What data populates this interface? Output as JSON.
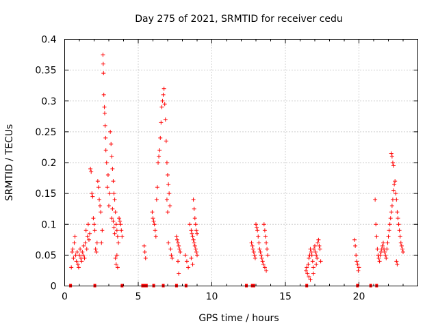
{
  "chart_data": {
    "type": "scatter",
    "title": "Day 275 of 2021, SRMTID for receiver cedu",
    "xlabel": "GPS time / hours",
    "ylabel": "SRMTID / TECUs",
    "xlim": [
      0,
      24
    ],
    "ylim": [
      0,
      0.4
    ],
    "grid": true,
    "marker": "plus",
    "color": "#ff0000",
    "x_ticks": [
      {
        "value": 0,
        "label": "0"
      },
      {
        "value": 5,
        "label": "5"
      },
      {
        "value": 10,
        "label": "10"
      },
      {
        "value": 15,
        "label": "15"
      },
      {
        "value": 20,
        "label": "20"
      }
    ],
    "y_ticks": [
      {
        "value": 0,
        "label": "0"
      },
      {
        "value": 0.05,
        "label": "0.05"
      },
      {
        "value": 0.1,
        "label": "0.1"
      },
      {
        "value": 0.15,
        "label": "0.15"
      },
      {
        "value": 0.2,
        "label": "0.2"
      },
      {
        "value": 0.25,
        "label": "0.25"
      },
      {
        "value": 0.3,
        "label": "0.3"
      },
      {
        "value": 0.35,
        "label": "0.35"
      },
      {
        "value": 0.4,
        "label": "0.4"
      }
    ],
    "series": [
      {
        "name": "SRMTID",
        "points": [
          [
            0.45,
            0.03
          ],
          [
            0.5,
            0.055
          ],
          [
            0.55,
            0.06
          ],
          [
            0.6,
            0.045
          ],
          [
            0.65,
            0.07
          ],
          [
            0.7,
            0.08
          ],
          [
            0.75,
            0.05
          ],
          [
            0.8,
            0.04
          ],
          [
            0.85,
            0.055
          ],
          [
            0.9,
            0.035
          ],
          [
            0.95,
            0.03
          ],
          [
            1.0,
            0.05
          ],
          [
            1.05,
            0.06
          ],
          [
            1.1,
            0.045
          ],
          [
            1.15,
            0.04
          ],
          [
            1.2,
            0.055
          ],
          [
            1.25,
            0.05
          ],
          [
            1.3,
            0.065
          ],
          [
            1.35,
            0.045
          ],
          [
            1.4,
            0.07
          ],
          [
            1.45,
            0.09
          ],
          [
            1.5,
            0.06
          ],
          [
            1.55,
            0.08
          ],
          [
            1.6,
            0.1
          ],
          [
            1.65,
            0.075
          ],
          [
            1.7,
            0.085
          ],
          [
            1.75,
            0.19
          ],
          [
            1.8,
            0.185
          ],
          [
            1.85,
            0.15
          ],
          [
            1.9,
            0.145
          ],
          [
            1.95,
            0.11
          ],
          [
            2.0,
            0.1
          ],
          [
            2.05,
            0.09
          ],
          [
            2.1,
            0.06
          ],
          [
            2.15,
            0.055
          ],
          [
            2.2,
            0.07
          ],
          [
            2.25,
            0.17
          ],
          [
            2.3,
            0.16
          ],
          [
            2.35,
            0.14
          ],
          [
            2.4,
            0.13
          ],
          [
            2.45,
            0.12
          ],
          [
            2.5,
            0.07
          ],
          [
            2.55,
            0.09
          ],
          [
            2.6,
            0.375
          ],
          [
            2.62,
            0.36
          ],
          [
            2.64,
            0.345
          ],
          [
            2.66,
            0.31
          ],
          [
            2.7,
            0.29
          ],
          [
            2.72,
            0.28
          ],
          [
            2.75,
            0.26
          ],
          [
            2.78,
            0.24
          ],
          [
            2.8,
            0.22
          ],
          [
            2.85,
            0.2
          ],
          [
            2.9,
            0.16
          ],
          [
            2.95,
            0.18
          ],
          [
            3.0,
            0.13
          ],
          [
            3.05,
            0.15
          ],
          [
            3.1,
            0.25
          ],
          [
            3.15,
            0.23
          ],
          [
            3.2,
            0.21
          ],
          [
            3.25,
            0.19
          ],
          [
            3.3,
            0.17
          ],
          [
            3.35,
            0.15
          ],
          [
            3.4,
            0.14
          ],
          [
            3.45,
            0.12
          ],
          [
            3.5,
            0.1
          ],
          [
            3.55,
            0.09
          ],
          [
            3.6,
            0.08
          ],
          [
            3.65,
            0.07
          ],
          [
            3.7,
            0.11
          ],
          [
            3.75,
            0.105
          ],
          [
            3.8,
            0.1
          ],
          [
            3.85,
            0.09
          ],
          [
            3.9,
            0.08
          ],
          [
            3.2,
            0.11
          ],
          [
            3.25,
            0.125
          ],
          [
            3.3,
            0.105
          ],
          [
            3.35,
            0.095
          ],
          [
            3.4,
            0.085
          ],
          [
            3.45,
            0.045
          ],
          [
            3.5,
            0.035
          ],
          [
            3.55,
            0.05
          ],
          [
            3.6,
            0.03
          ],
          [
            5.4,
            0.065
          ],
          [
            5.45,
            0.055
          ],
          [
            5.5,
            0.045
          ],
          [
            5.95,
            0.12
          ],
          [
            6.0,
            0.11
          ],
          [
            6.05,
            0.105
          ],
          [
            6.1,
            0.1
          ],
          [
            6.15,
            0.09
          ],
          [
            6.2,
            0.08
          ],
          [
            6.25,
            0.14
          ],
          [
            6.3,
            0.16
          ],
          [
            6.35,
            0.2
          ],
          [
            6.4,
            0.21
          ],
          [
            6.45,
            0.22
          ],
          [
            6.5,
            0.24
          ],
          [
            6.55,
            0.265
          ],
          [
            6.6,
            0.29
          ],
          [
            6.65,
            0.3
          ],
          [
            6.7,
            0.31
          ],
          [
            6.75,
            0.32
          ],
          [
            6.8,
            0.295
          ],
          [
            6.85,
            0.27
          ],
          [
            6.9,
            0.235
          ],
          [
            6.95,
            0.2
          ],
          [
            7.0,
            0.18
          ],
          [
            7.05,
            0.165
          ],
          [
            7.1,
            0.15
          ],
          [
            7.15,
            0.13
          ],
          [
            7.2,
            0.06
          ],
          [
            7.25,
            0.05
          ],
          [
            7.3,
            0.045
          ],
          [
            6.95,
            0.14
          ],
          [
            7.0,
            0.12
          ],
          [
            7.05,
            0.07
          ],
          [
            7.6,
            0.08
          ],
          [
            7.65,
            0.075
          ],
          [
            7.7,
            0.07
          ],
          [
            7.75,
            0.065
          ],
          [
            7.8,
            0.06
          ],
          [
            7.85,
            0.055
          ],
          [
            7.7,
            0.04
          ],
          [
            7.75,
            0.02
          ],
          [
            8.2,
            0.05
          ],
          [
            8.3,
            0.04
          ],
          [
            8.4,
            0.03
          ],
          [
            8.5,
            0.1
          ],
          [
            8.6,
            0.09
          ],
          [
            8.65,
            0.085
          ],
          [
            8.7,
            0.08
          ],
          [
            8.75,
            0.075
          ],
          [
            8.8,
            0.07
          ],
          [
            8.85,
            0.065
          ],
          [
            8.9,
            0.06
          ],
          [
            8.95,
            0.055
          ],
          [
            9.0,
            0.05
          ],
          [
            8.75,
            0.14
          ],
          [
            8.8,
            0.125
          ],
          [
            8.85,
            0.11
          ],
          [
            8.9,
            0.1
          ],
          [
            8.95,
            0.09
          ],
          [
            9.0,
            0.085
          ],
          [
            8.6,
            0.045
          ],
          [
            8.7,
            0.035
          ],
          [
            12.7,
            0.07
          ],
          [
            12.75,
            0.065
          ],
          [
            12.8,
            0.06
          ],
          [
            12.85,
            0.055
          ],
          [
            12.9,
            0.05
          ],
          [
            12.95,
            0.045
          ],
          [
            13.0,
            0.1
          ],
          [
            13.05,
            0.095
          ],
          [
            13.1,
            0.09
          ],
          [
            13.15,
            0.08
          ],
          [
            13.2,
            0.07
          ],
          [
            13.25,
            0.06
          ],
          [
            13.3,
            0.055
          ],
          [
            13.35,
            0.05
          ],
          [
            13.4,
            0.045
          ],
          [
            13.45,
            0.04
          ],
          [
            13.5,
            0.035
          ],
          [
            13.55,
            0.1
          ],
          [
            13.6,
            0.09
          ],
          [
            13.65,
            0.08
          ],
          [
            13.7,
            0.07
          ],
          [
            13.75,
            0.06
          ],
          [
            13.8,
            0.05
          ],
          [
            13.6,
            0.03
          ],
          [
            13.7,
            0.025
          ],
          [
            16.4,
            0.025
          ],
          [
            16.45,
            0.03
          ],
          [
            16.5,
            0.02
          ],
          [
            16.55,
            0.035
          ],
          [
            16.6,
            0.045
          ],
          [
            16.65,
            0.05
          ],
          [
            16.7,
            0.06
          ],
          [
            16.75,
            0.055
          ],
          [
            16.8,
            0.05
          ],
          [
            16.85,
            0.04
          ],
          [
            16.9,
            0.03
          ],
          [
            16.95,
            0.06
          ],
          [
            17.0,
            0.065
          ],
          [
            17.05,
            0.055
          ],
          [
            17.1,
            0.05
          ],
          [
            17.15,
            0.045
          ],
          [
            17.2,
            0.07
          ],
          [
            17.25,
            0.075
          ],
          [
            17.3,
            0.065
          ],
          [
            17.35,
            0.06
          ],
          [
            17.4,
            0.04
          ],
          [
            16.6,
            0.015
          ],
          [
            16.7,
            0.01
          ],
          [
            16.9,
            0.02
          ],
          [
            17.1,
            0.035
          ],
          [
            19.7,
            0.075
          ],
          [
            19.75,
            0.065
          ],
          [
            19.8,
            0.05
          ],
          [
            19.85,
            0.04
          ],
          [
            19.9,
            0.035
          ],
          [
            19.95,
            0.025
          ],
          [
            20.0,
            0.03
          ],
          [
            21.1,
            0.14
          ],
          [
            21.15,
            0.1
          ],
          [
            21.2,
            0.08
          ],
          [
            21.25,
            0.06
          ],
          [
            21.3,
            0.05
          ],
          [
            21.35,
            0.045
          ],
          [
            21.4,
            0.04
          ],
          [
            21.45,
            0.05
          ],
          [
            21.5,
            0.055
          ],
          [
            21.55,
            0.06
          ],
          [
            21.6,
            0.065
          ],
          [
            21.65,
            0.07
          ],
          [
            21.7,
            0.06
          ],
          [
            21.75,
            0.055
          ],
          [
            21.8,
            0.05
          ],
          [
            21.85,
            0.045
          ],
          [
            21.9,
            0.06
          ],
          [
            21.95,
            0.07
          ],
          [
            22.0,
            0.08
          ],
          [
            22.05,
            0.09
          ],
          [
            22.1,
            0.1
          ],
          [
            22.15,
            0.11
          ],
          [
            22.2,
            0.12
          ],
          [
            22.25,
            0.13
          ],
          [
            22.3,
            0.14
          ],
          [
            22.35,
            0.155
          ],
          [
            22.4,
            0.165
          ],
          [
            22.45,
            0.17
          ],
          [
            22.5,
            0.15
          ],
          [
            22.55,
            0.14
          ],
          [
            22.6,
            0.12
          ],
          [
            22.65,
            0.11
          ],
          [
            22.7,
            0.1
          ],
          [
            22.75,
            0.09
          ],
          [
            22.8,
            0.08
          ],
          [
            22.85,
            0.07
          ],
          [
            22.9,
            0.065
          ],
          [
            22.95,
            0.06
          ],
          [
            23.0,
            0.055
          ],
          [
            22.2,
            0.215
          ],
          [
            22.25,
            0.21
          ],
          [
            22.3,
            0.2
          ],
          [
            22.35,
            0.195
          ],
          [
            22.55,
            0.04
          ],
          [
            22.6,
            0.035
          ]
        ]
      }
    ],
    "zero_points": [
      0.4,
      2.05,
      3.9,
      5.3,
      5.45,
      5.55,
      6.05,
      6.7,
      7.6,
      8.25,
      12.35,
      12.75,
      12.85,
      16.45,
      19.9,
      20.8,
      21.2
    ]
  }
}
